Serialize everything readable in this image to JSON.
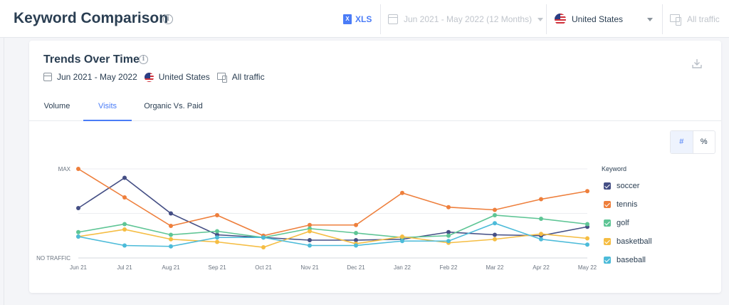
{
  "header": {
    "title": "Keyword Comparison",
    "xls_label": "XLS",
    "xls_icon_text": "X",
    "date_range": "Jun 2021 - May 2022 (12 Months)",
    "country": "United States",
    "traffic": "All traffic",
    "info_glyph": "i"
  },
  "card": {
    "title": "Trends Over Time",
    "date": "Jun 2021 - May 2022",
    "country": "United States",
    "traffic": "All traffic",
    "tabs": [
      {
        "label": "Volume",
        "active": false
      },
      {
        "label": "Visits",
        "active": true
      },
      {
        "label": "Organic Vs. Paid",
        "active": false
      }
    ],
    "toggle": {
      "hash": "#",
      "percent": "%",
      "active": "#"
    }
  },
  "chart_data": {
    "type": "line",
    "x": [
      "Jun 21",
      "Jul 21",
      "Aug 21",
      "Sep 21",
      "Oct 21",
      "Nov 21",
      "Dec 21",
      "Jan 22",
      "Feb 22",
      "Mar 22",
      "Apr 22",
      "May 22"
    ],
    "y_tick_labels": {
      "max": "MAX",
      "min": "NO TRAFFIC"
    },
    "ylim": [
      0,
      100
    ],
    "grid": true,
    "legend_title": "Keyword",
    "legend_position": "right",
    "series": [
      {
        "name": "soccer",
        "color": "#454f85",
        "values": [
          56,
          90,
          50,
          26,
          23,
          20,
          20,
          21,
          29,
          26,
          25,
          35
        ]
      },
      {
        "name": "tennis",
        "color": "#ee7f3c",
        "values": [
          100,
          68,
          36,
          48,
          25,
          37,
          37,
          73,
          57,
          54,
          66,
          75
        ]
      },
      {
        "name": "golf",
        "color": "#5ec595",
        "values": [
          29,
          38,
          26,
          30,
          23,
          33,
          28,
          23,
          25,
          48,
          44,
          38
        ]
      },
      {
        "name": "basketball",
        "color": "#f5bd43",
        "values": [
          24,
          32,
          21,
          18,
          12,
          30,
          16,
          24,
          17,
          21,
          27,
          22
        ]
      },
      {
        "name": "baseball",
        "color": "#4cbbd9",
        "values": [
          24,
          14,
          13,
          23,
          23,
          14,
          14,
          19,
          19,
          39,
          21,
          15
        ]
      }
    ]
  }
}
